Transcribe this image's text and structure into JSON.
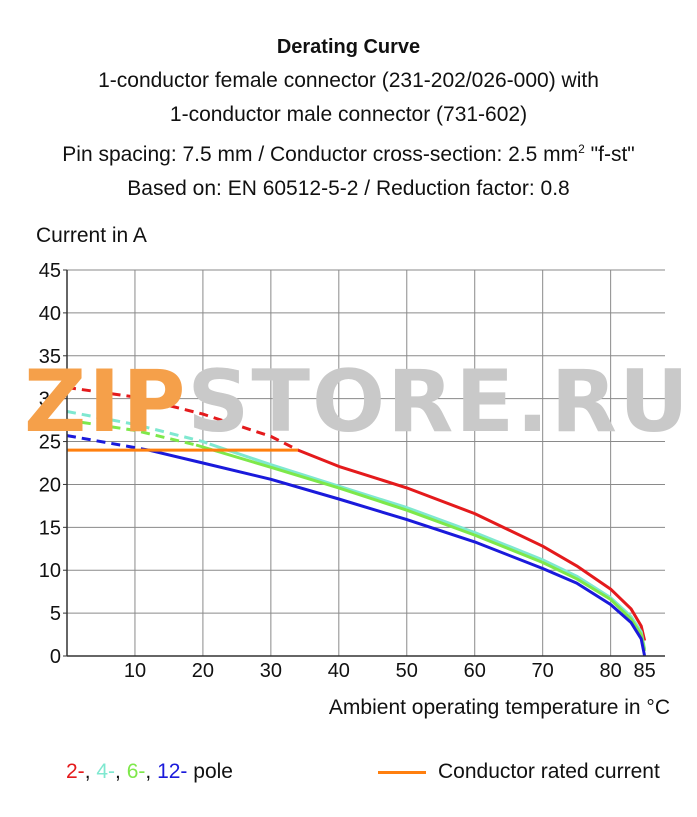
{
  "titles": {
    "main": "Derating Curve",
    "line1": "1-conductor female connector (231-202/026-000) with",
    "line2": "1-conductor male connector (731-602)",
    "line3_pre": "Pin spacing: 7.5 mm / Conductor cross-section: 2.5 mm",
    "line3_sup": "2",
    "line3_post": " \"f-st\"",
    "line4": "Based on: EN 60512-5-2 / Reduction factor: 0.8"
  },
  "watermark": {
    "part1": "ZIP",
    "part2": "STORE.RU",
    "color1": "#f5a04a",
    "color2": "#c9c9c9"
  },
  "legend": {
    "pole_items": [
      {
        "label": "2-",
        "color": "#e41a1c"
      },
      {
        "label": "4-",
        "color": "#7fe8d0"
      },
      {
        "label": "6-",
        "color": "#7ee84a"
      },
      {
        "label": "12-",
        "color": "#1a1adb"
      }
    ],
    "pole_suffix": "pole",
    "rated_label": "Conductor rated current",
    "rated_color": "#ff7f0e"
  },
  "chart_data": {
    "type": "line",
    "title": "Derating Curve",
    "xlabel": "Ambient operating temperature in °C",
    "ylabel": "Current in A",
    "xlim": [
      0,
      88
    ],
    "ylim": [
      0,
      45
    ],
    "xticks": [
      10,
      20,
      30,
      40,
      50,
      60,
      70,
      80,
      85
    ],
    "yticks": [
      0,
      5,
      10,
      15,
      20,
      25,
      30,
      35,
      40,
      45
    ],
    "grid": true,
    "legend": "bottom",
    "series": [
      {
        "name": "2-",
        "color": "#e41a1c",
        "dashed": [
          [
            0,
            31.3
          ],
          [
            10,
            30.2
          ],
          [
            20,
            28.2
          ],
          [
            30,
            25.6
          ],
          [
            34,
            24.0
          ]
        ],
        "solid": [
          [
            34,
            24.0
          ],
          [
            40,
            22.1
          ],
          [
            50,
            19.6
          ],
          [
            60,
            16.6
          ],
          [
            70,
            12.8
          ],
          [
            75,
            10.5
          ],
          [
            80,
            7.8
          ],
          [
            83,
            5.5
          ],
          [
            84.5,
            3.5
          ],
          [
            85,
            1.8
          ]
        ]
      },
      {
        "name": "4-",
        "color": "#7fe8d0",
        "dashed": [
          [
            0,
            28.5
          ],
          [
            10,
            27.0
          ],
          [
            20,
            25.0
          ],
          [
            21,
            24.7
          ]
        ],
        "solid": [
          [
            21,
            24.7
          ],
          [
            30,
            22.3
          ],
          [
            40,
            19.8
          ],
          [
            50,
            17.3
          ],
          [
            60,
            14.4
          ],
          [
            70,
            11.2
          ],
          [
            75,
            9.3
          ],
          [
            80,
            6.8
          ],
          [
            83,
            4.6
          ],
          [
            84.5,
            2.8
          ],
          [
            85,
            0.8
          ]
        ]
      },
      {
        "name": "6-",
        "color": "#7ee84a",
        "dashed": [
          [
            0,
            27.5
          ],
          [
            10,
            26.3
          ],
          [
            19,
            24.6
          ]
        ],
        "solid": [
          [
            19,
            24.6
          ],
          [
            30,
            22.0
          ],
          [
            40,
            19.6
          ],
          [
            50,
            17.0
          ],
          [
            60,
            14.1
          ],
          [
            70,
            10.9
          ],
          [
            75,
            9.0
          ],
          [
            80,
            6.6
          ],
          [
            83,
            4.3
          ],
          [
            84.5,
            2.5
          ],
          [
            85,
            0.6
          ]
        ]
      },
      {
        "name": "12-",
        "color": "#1a1adb",
        "dashed": [
          [
            0,
            25.7
          ],
          [
            10,
            24.3
          ],
          [
            12,
            24.0
          ]
        ],
        "solid": [
          [
            12,
            24.0
          ],
          [
            20,
            22.5
          ],
          [
            30,
            20.6
          ],
          [
            40,
            18.3
          ],
          [
            50,
            15.9
          ],
          [
            60,
            13.3
          ],
          [
            70,
            10.2
          ],
          [
            75,
            8.5
          ],
          [
            80,
            6.0
          ],
          [
            83,
            3.9
          ],
          [
            84.5,
            2.0
          ],
          [
            85,
            0.0
          ]
        ]
      },
      {
        "name": "Conductor rated current",
        "color": "#ff7f0e",
        "solid": [
          [
            0,
            24.0
          ],
          [
            34,
            24.0
          ]
        ]
      }
    ]
  }
}
